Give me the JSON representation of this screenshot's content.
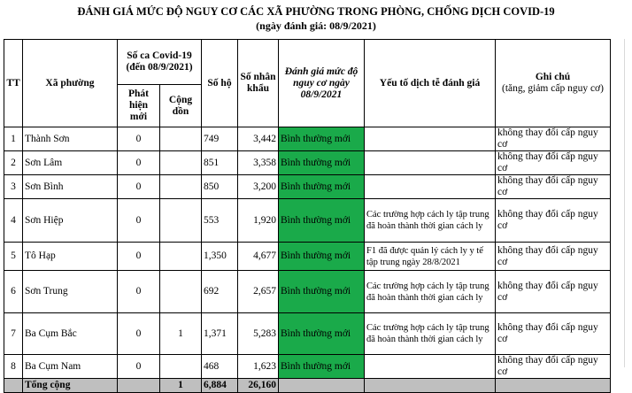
{
  "title": "ĐÁNH GIÁ MỨC ĐỘ NGUY CƠ CÁC XÃ PHƯỜNG TRONG PHÒNG, CHỐNG DỊCH COVID-19",
  "subtitle": "(ngày đánh giá: 08/9/2021)",
  "headers": {
    "tt": "TT",
    "ward": "Xã phường",
    "cases_group": "Số ca Covid-19 (đến 08/9/2021)",
    "new_cases": "Phát hiện mới",
    "cumulative": "Cộng dồn",
    "households": "Số hộ",
    "population": "Số nhân khẩu",
    "risk": "Đánh giá mức độ nguy cơ ngày 08/9/2021",
    "factors": "Yếu tố dịch tễ đánh giá",
    "note": "Ghi chú",
    "note_sub": "(tăng, giảm cấp nguy cơ)"
  },
  "rows": [
    {
      "tt": "1",
      "ward": "Thành Sơn",
      "new": "0",
      "cum": "",
      "households": "749",
      "population": "3,442",
      "risk": "Bình thường mới",
      "factors": "",
      "note": "không thay đổi cấp nguy cơ"
    },
    {
      "tt": "2",
      "ward": "Sơn Lâm",
      "new": "0",
      "cum": "",
      "households": "851",
      "population": "3,358",
      "risk": "Bình thường mới",
      "factors": "",
      "note": "không thay đổi cấp nguy cơ"
    },
    {
      "tt": "3",
      "ward": "Sơn Bình",
      "new": "0",
      "cum": "",
      "households": "850",
      "population": "3,200",
      "risk": "Bình thường mới",
      "factors": "",
      "note": "không thay đổi cấp nguy cơ"
    },
    {
      "tt": "4",
      "ward": "Sơn Hiệp",
      "new": "0",
      "cum": "",
      "households": "553",
      "population": "1,920",
      "risk": "Bình thường mới",
      "factors": "Các trường hợp cách ly tập trung đã hoàn thành thời gian cách ly",
      "note": "không thay đổi cấp nguy cơ"
    },
    {
      "tt": "5",
      "ward": "Tô Hạp",
      "new": "0",
      "cum": "",
      "households": "1,350",
      "population": "4,677",
      "risk": "Bình thường mới",
      "factors": "F1 đã được quản lý cách ly y tế tập trung ngày 28/8/2021",
      "note": "không thay đổi cấp nguy cơ"
    },
    {
      "tt": "6",
      "ward": "Sơn Trung",
      "new": "0",
      "cum": "",
      "households": "692",
      "population": "2,657",
      "risk": "Bình thường mới",
      "factors": "Các trường hợp cách ly tập trung đã hoàn thành thời gian cách ly",
      "note": "không thay đổi cấp nguy cơ"
    },
    {
      "tt": "7",
      "ward": "Ba Cụm Bắc",
      "new": "0",
      "cum": "1",
      "households": "1,371",
      "population": "5,283",
      "risk": "Bình thường mới",
      "factors": "Các trường hợp cách ly tập trung đã hoàn thành thời gian cách ly",
      "note": "không thay đổi cấp nguy cơ"
    },
    {
      "tt": "8",
      "ward": "Ba Cụm Nam",
      "new": "0",
      "cum": "",
      "households": "468",
      "population": "1,623",
      "risk": "Bình thường mới",
      "factors": "",
      "note": "không thay đổi cấp nguy cơ"
    }
  ],
  "total": {
    "label": "Tổng cộng",
    "new": "",
    "cum": "1",
    "households": "6,884",
    "population": "26,160"
  },
  "colors": {
    "risk_green": "#1aaa4a",
    "total_gray": "#bfbfbf"
  }
}
